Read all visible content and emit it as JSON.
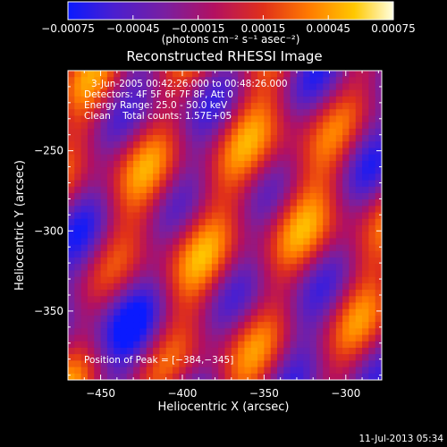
{
  "chart_data": {
    "type": "heatmap",
    "title": "Reconstructed RHESSI Image",
    "xlabel": "Heliocentric X (arcsec)",
    "ylabel": "Heliocentric Y (arcsec)",
    "xlim": [
      -470,
      -278
    ],
    "ylim": [
      -393,
      -200
    ],
    "x_ticks": [
      -450,
      -400,
      -350,
      -300
    ],
    "y_ticks": [
      -250,
      -300,
      -350
    ],
    "x_tick_labels": [
      "−450",
      "−400",
      "−350",
      "−300"
    ],
    "y_tick_labels": [
      "−250",
      "−300",
      "−350"
    ],
    "colorbar": {
      "min": -0.00075,
      "max": 0.00075,
      "ticks": [
        -0.00075,
        -0.00045,
        -0.00015,
        0.00015,
        0.00045,
        0.00075
      ],
      "tick_labels": [
        "−0.00075",
        "−0.00045",
        "−0.00015",
        "0.00015",
        "0.00045",
        "0.00075"
      ],
      "unit_label": "(photons cm⁻² s⁻¹ asec⁻²)",
      "colors": [
        "#0a1aff",
        "#4a1fd0",
        "#7a1fa0",
        "#b31060",
        "#e0301a",
        "#ff7a00",
        "#ffc800",
        "#ffffe0"
      ]
    },
    "annotations": {
      "time_range": "3-Jun-2005 00:42:26.000 to 00:48:26.000",
      "detectors": "Detectors: 4F 5F 6F 7F 8F, Att 0",
      "energy_range": "Energy Range: 25.0 - 50.0 keV",
      "clean": "Clean    Total counts: 1.57E+05",
      "peak_position": "Position of Peak = [−384,−345]"
    },
    "peak": {
      "x": -384,
      "y": -345
    }
  },
  "footer": {
    "timestamp": "11-Jul-2013 05:34"
  }
}
